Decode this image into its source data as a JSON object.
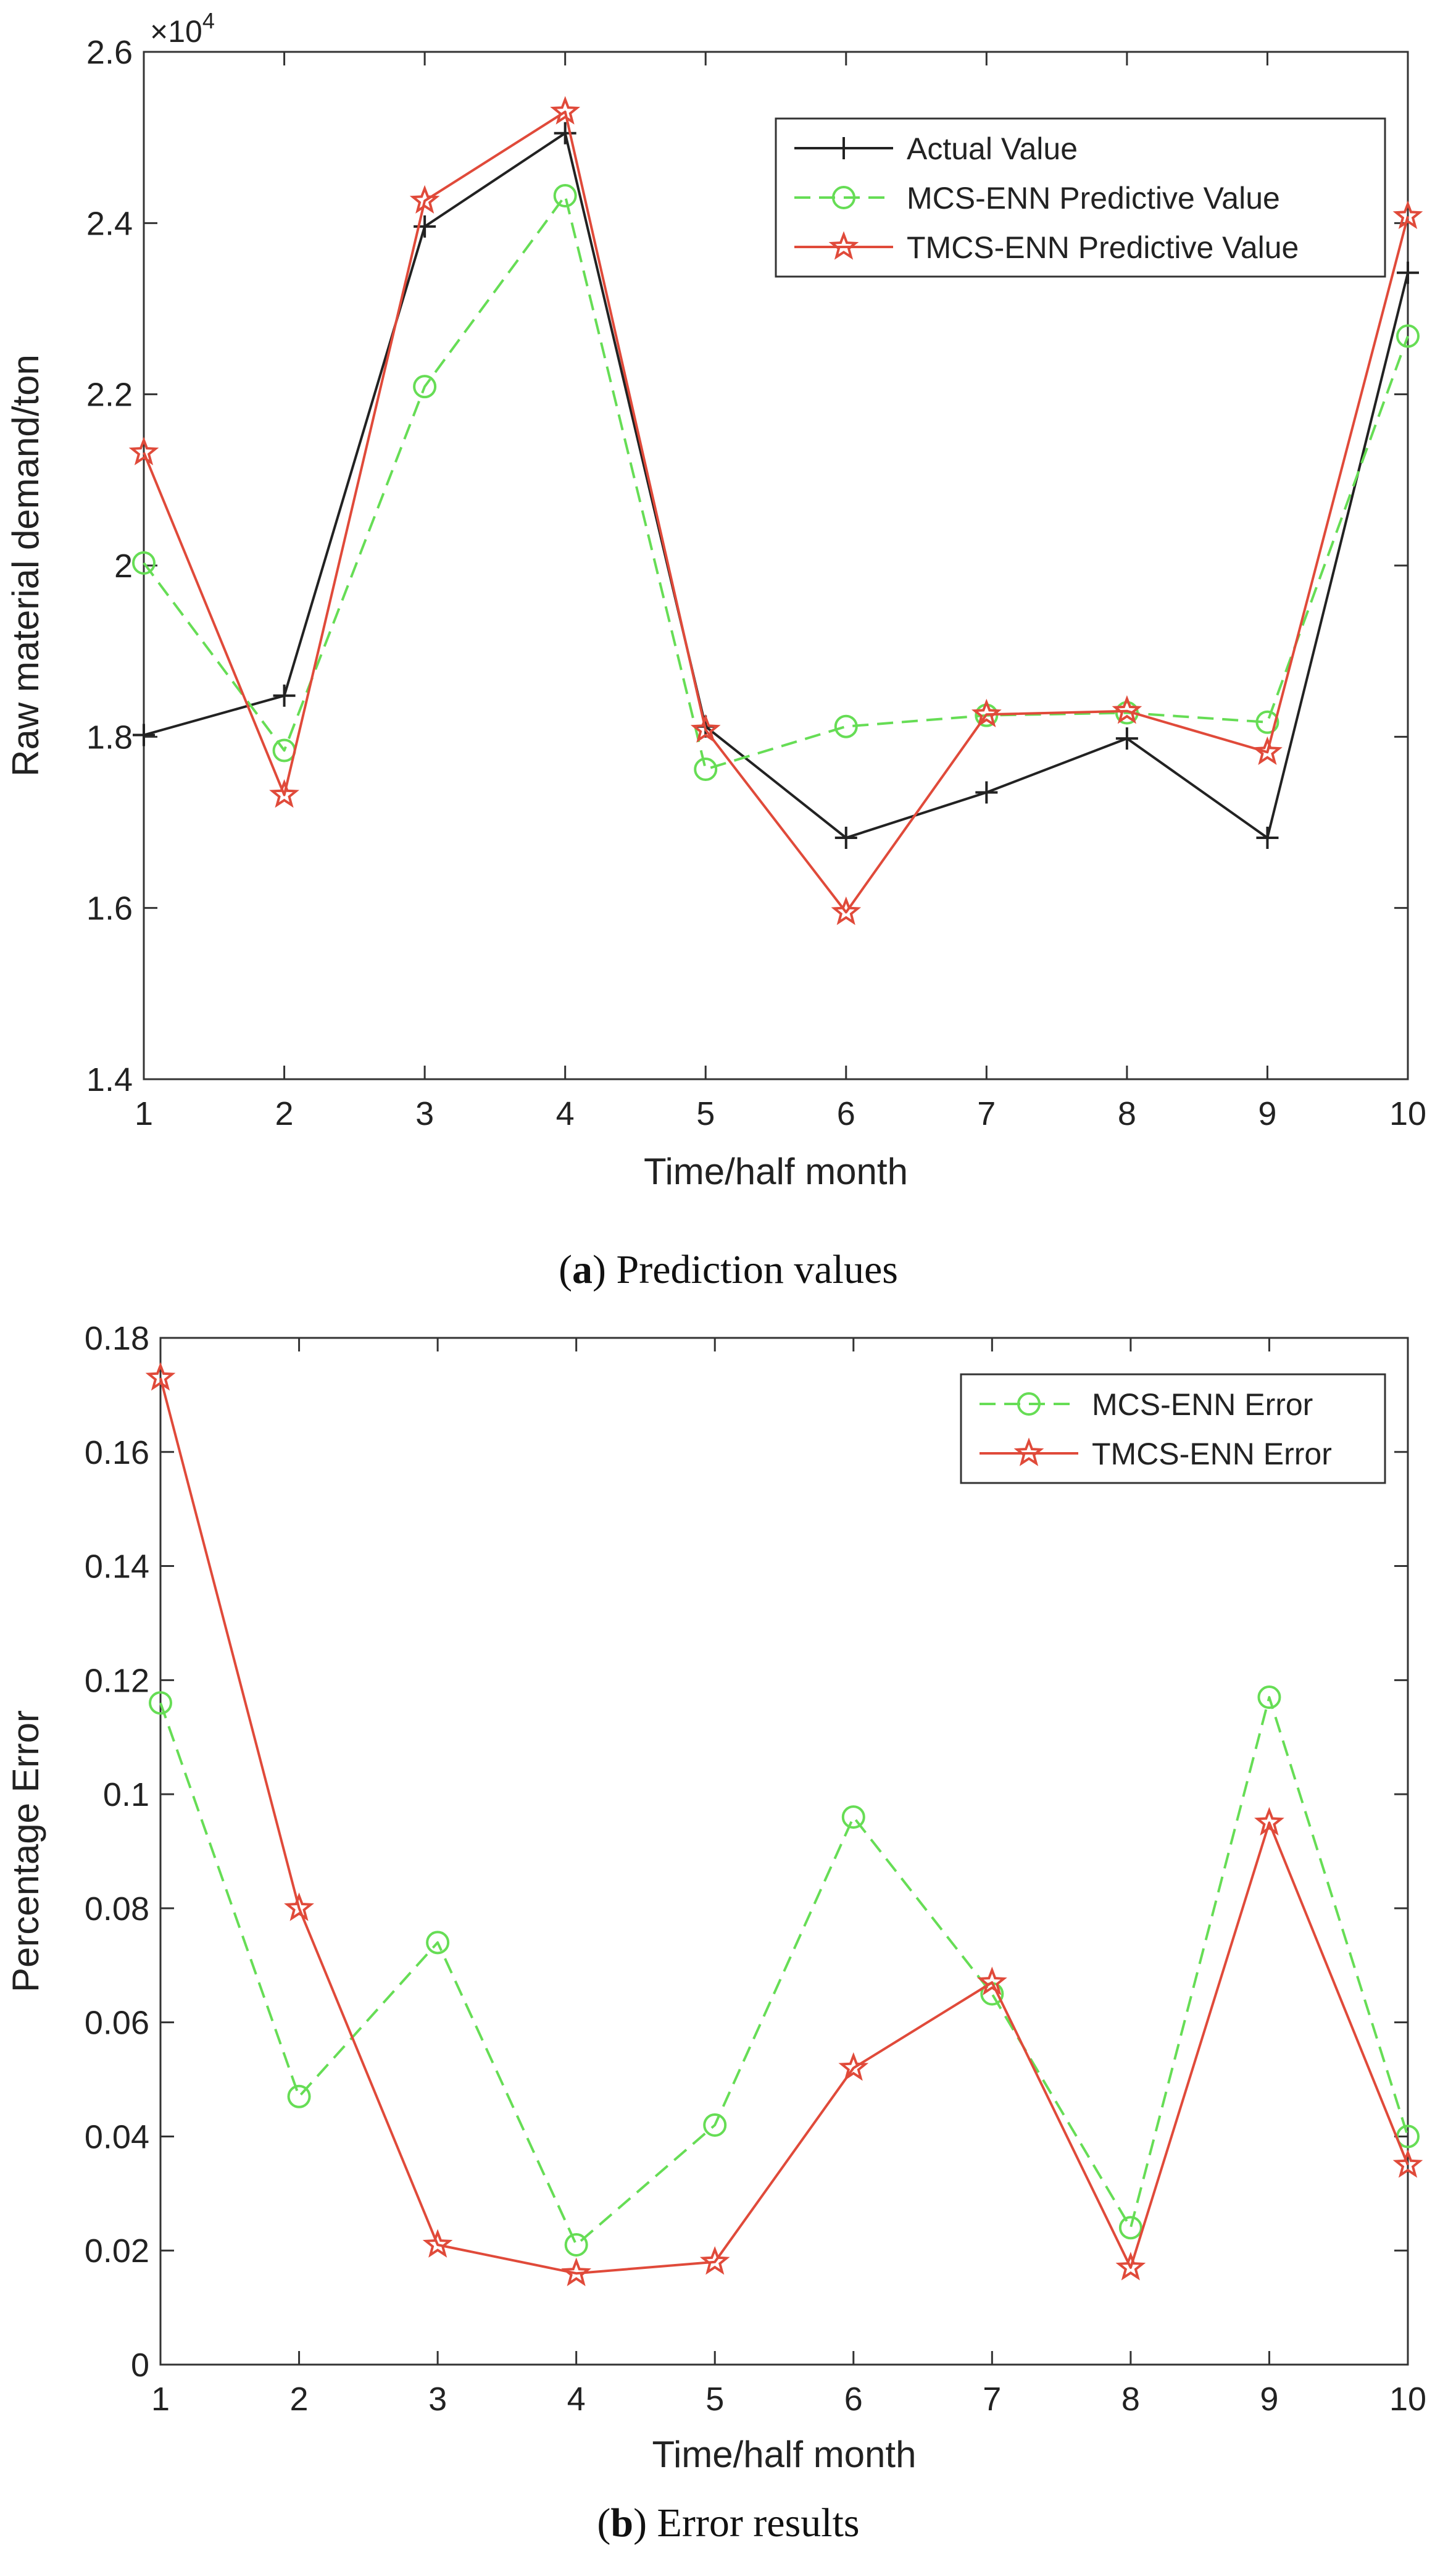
{
  "chart_data": [
    {
      "type": "line",
      "id": "a",
      "title": "",
      "xlabel": "Time/half month",
      "ylabel": "Raw material demand/ton",
      "y_exponent_label": "×10",
      "y_exponent_value": "4",
      "x": [
        1,
        2,
        3,
        4,
        5,
        6,
        7,
        8,
        9,
        10
      ],
      "xlim": [
        1,
        10
      ],
      "ylim": [
        1.4,
        2.6
      ],
      "xticks": [
        "1",
        "2",
        "3",
        "4",
        "5",
        "6",
        "7",
        "8",
        "9",
        "10"
      ],
      "yticks": [
        "1.4",
        "1.6",
        "1.8",
        "2",
        "2.2",
        "2.4",
        "2.6"
      ],
      "grid": false,
      "legend_position": "top-right",
      "series": [
        {
          "name": "Actual Value",
          "color": "#222222",
          "marker": "plus",
          "dash": "solid",
          "values": [
            1.802,
            1.848,
            2.396,
            2.505,
            1.812,
            1.682,
            1.735,
            1.798,
            1.682,
            2.342
          ]
        },
        {
          "name": "MCS-ENN Predictive Value",
          "color": "#66dd55",
          "marker": "circle",
          "dash": "dashed",
          "values": [
            2.003,
            1.784,
            2.209,
            2.432,
            1.762,
            1.812,
            1.825,
            1.828,
            1.817,
            2.268
          ]
        },
        {
          "name": "TMCS-ENN Predictive Value",
          "color": "#e04a3a",
          "marker": "star",
          "dash": "solid",
          "values": [
            2.132,
            1.732,
            2.426,
            2.53,
            1.808,
            1.595,
            1.826,
            1.83,
            1.782,
            2.408
          ]
        }
      ],
      "caption_bold": "a",
      "caption_text": " Prediction values"
    },
    {
      "type": "line",
      "id": "b",
      "title": "",
      "xlabel": "Time/half month",
      "ylabel": "Percentage Error",
      "x": [
        1,
        2,
        3,
        4,
        5,
        6,
        7,
        8,
        9,
        10
      ],
      "xlim": [
        1,
        10
      ],
      "ylim": [
        0,
        0.18
      ],
      "xticks": [
        "1",
        "2",
        "3",
        "4",
        "5",
        "6",
        "7",
        "8",
        "9",
        "10"
      ],
      "yticks": [
        "0",
        "0.02",
        "0.04",
        "0.06",
        "0.08",
        "0.1",
        "0.12",
        "0.14",
        "0.16",
        "0.18"
      ],
      "grid": false,
      "legend_position": "top-right",
      "series": [
        {
          "name": "MCS-ENN Error",
          "color": "#66dd55",
          "marker": "circle",
          "dash": "dashed",
          "values": [
            0.116,
            0.047,
            0.074,
            0.021,
            0.042,
            0.096,
            0.065,
            0.024,
            0.117,
            0.04
          ]
        },
        {
          "name": "TMCS-ENN Error",
          "color": "#e04a3a",
          "marker": "star",
          "dash": "solid",
          "values": [
            0.173,
            0.08,
            0.021,
            0.016,
            0.018,
            0.052,
            0.067,
            0.017,
            0.095,
            0.035
          ]
        }
      ],
      "caption_bold": "b",
      "caption_text": " Error results"
    }
  ]
}
